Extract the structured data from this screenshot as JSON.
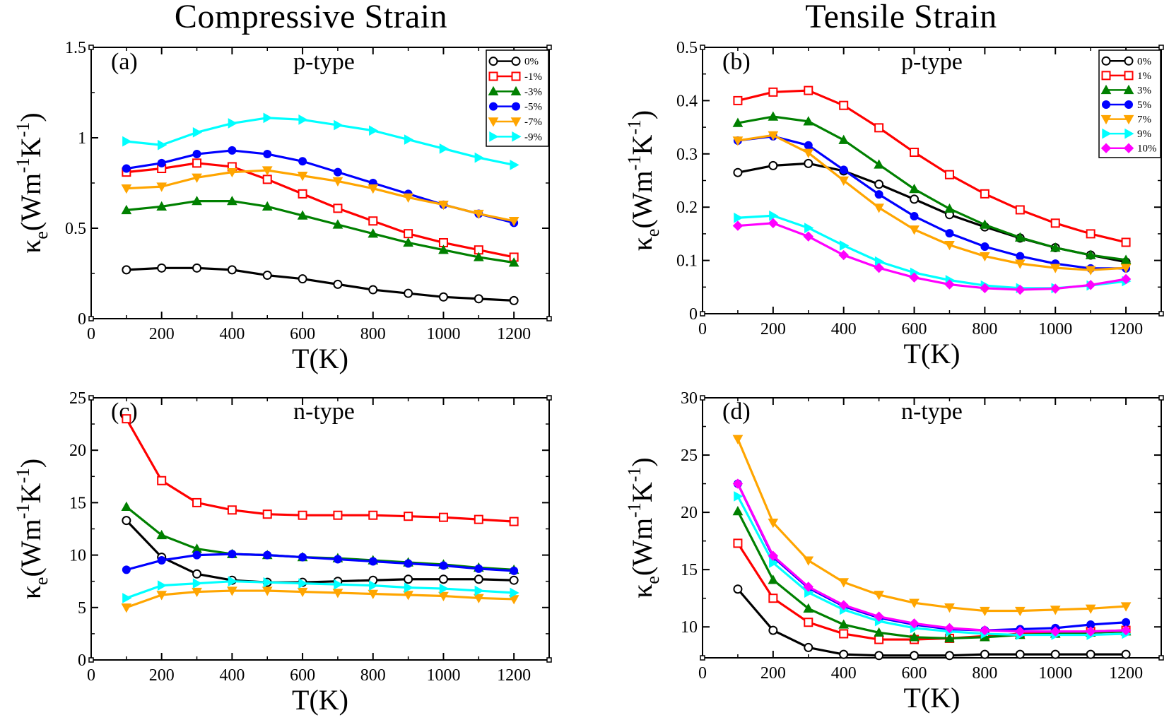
{
  "titles": {
    "left": "Compressive  Strain",
    "right": "Tensile  Strain"
  },
  "chart_data": [
    {
      "type": "line",
      "panel_label": "(a)",
      "annotation": "p-type",
      "xlabel": "T(K)",
      "ylabel": "κe(Wm-1K-1)",
      "xlim": [
        0,
        1300
      ],
      "ylim": [
        0,
        1.5
      ],
      "xticks": [
        0,
        200,
        400,
        600,
        800,
        1000,
        1200
      ],
      "yticks": [
        0,
        0.5,
        1,
        1.5
      ],
      "ytick_labels": [
        "0",
        "0.5",
        "1",
        "1.5"
      ],
      "legend_position": "top-right",
      "x": [
        100,
        200,
        300,
        400,
        500,
        600,
        700,
        800,
        900,
        1000,
        1100,
        1200
      ],
      "series": [
        {
          "name": "0%",
          "color": "#000000",
          "marker": "circle-open",
          "values": [
            0.27,
            0.28,
            0.28,
            0.27,
            0.24,
            0.22,
            0.19,
            0.16,
            0.14,
            0.12,
            0.11,
            0.1
          ]
        },
        {
          "name": "-1%",
          "color": "#ff0000",
          "marker": "square-open",
          "values": [
            0.81,
            0.83,
            0.86,
            0.84,
            0.77,
            0.69,
            0.61,
            0.54,
            0.47,
            0.42,
            0.38,
            0.34
          ]
        },
        {
          "name": "-3%",
          "color": "#008000",
          "marker": "triangle-up",
          "values": [
            0.6,
            0.62,
            0.65,
            0.65,
            0.62,
            0.57,
            0.52,
            0.47,
            0.42,
            0.38,
            0.34,
            0.31
          ]
        },
        {
          "name": "-5%",
          "color": "#0000ff",
          "marker": "circle",
          "values": [
            0.83,
            0.86,
            0.91,
            0.93,
            0.91,
            0.87,
            0.81,
            0.75,
            0.69,
            0.63,
            0.58,
            0.53
          ]
        },
        {
          "name": "-7%",
          "color": "#ffa500",
          "marker": "triangle-down",
          "values": [
            0.72,
            0.73,
            0.78,
            0.81,
            0.82,
            0.79,
            0.76,
            0.72,
            0.67,
            0.63,
            0.58,
            0.54
          ]
        },
        {
          "name": "-9%",
          "color": "#00ffff",
          "marker": "triangle-right",
          "values": [
            0.98,
            0.96,
            1.03,
            1.08,
            1.11,
            1.1,
            1.07,
            1.04,
            0.99,
            0.94,
            0.89,
            0.85
          ]
        }
      ]
    },
    {
      "type": "line",
      "panel_label": "(b)",
      "annotation": "p-type",
      "xlabel": "T(K)",
      "ylabel": "κe(Wm-1K-1)",
      "xlim": [
        0,
        1300
      ],
      "ylim": [
        0,
        0.5
      ],
      "xticks": [
        0,
        200,
        400,
        600,
        800,
        1000,
        1200
      ],
      "yticks": [
        0,
        0.1,
        0.2,
        0.3,
        0.4,
        0.5
      ],
      "ytick_labels": [
        "0",
        "0.1",
        "0.2",
        "0.3",
        "0.4",
        "0.5"
      ],
      "legend_position": "top-right",
      "x": [
        100,
        200,
        300,
        400,
        500,
        600,
        700,
        800,
        900,
        1000,
        1100,
        1200
      ],
      "series": [
        {
          "name": "0%",
          "color": "#000000",
          "marker": "circle-open",
          "values": [
            0.265,
            0.278,
            0.282,
            0.268,
            0.243,
            0.215,
            0.186,
            0.163,
            0.142,
            0.124,
            0.11,
            0.097
          ]
        },
        {
          "name": "1%",
          "color": "#ff0000",
          "marker": "square-open",
          "values": [
            0.4,
            0.416,
            0.419,
            0.391,
            0.349,
            0.303,
            0.261,
            0.225,
            0.195,
            0.17,
            0.15,
            0.134
          ]
        },
        {
          "name": "3%",
          "color": "#008000",
          "marker": "triangle-up",
          "values": [
            0.358,
            0.37,
            0.361,
            0.326,
            0.28,
            0.234,
            0.197,
            0.167,
            0.143,
            0.124,
            0.11,
            0.101
          ]
        },
        {
          "name": "5%",
          "color": "#0000ff",
          "marker": "circle",
          "values": [
            0.325,
            0.333,
            0.316,
            0.27,
            0.224,
            0.183,
            0.151,
            0.126,
            0.108,
            0.094,
            0.085,
            0.085
          ]
        },
        {
          "name": "7%",
          "color": "#ffa500",
          "marker": "triangle-down",
          "values": [
            0.325,
            0.335,
            0.302,
            0.25,
            0.199,
            0.158,
            0.129,
            0.108,
            0.094,
            0.086,
            0.082,
            0.086
          ]
        },
        {
          "name": "9%",
          "color": "#00ffff",
          "marker": "triangle-right",
          "values": [
            0.18,
            0.184,
            0.161,
            0.128,
            0.098,
            0.077,
            0.063,
            0.053,
            0.048,
            0.048,
            0.053,
            0.061
          ]
        },
        {
          "name": "10%",
          "color": "#ff00ff",
          "marker": "diamond",
          "values": [
            0.165,
            0.17,
            0.145,
            0.11,
            0.086,
            0.068,
            0.055,
            0.048,
            0.045,
            0.047,
            0.054,
            0.065
          ]
        }
      ]
    },
    {
      "type": "line",
      "panel_label": "(c)",
      "annotation": "n-type",
      "xlabel": "T(K)",
      "ylabel": "κe(Wm-1K-1)",
      "xlim": [
        0,
        1300
      ],
      "ylim": [
        0,
        25
      ],
      "xticks": [
        0,
        200,
        400,
        600,
        800,
        1000,
        1200
      ],
      "yticks": [
        0,
        5,
        10,
        15,
        20,
        25
      ],
      "ytick_labels": [
        "0",
        "5",
        "10",
        "15",
        "20",
        "25"
      ],
      "x": [
        100,
        200,
        300,
        400,
        500,
        600,
        700,
        800,
        900,
        1000,
        1100,
        1200
      ],
      "series": [
        {
          "color": "#000000",
          "marker": "circle-open",
          "values": [
            13.3,
            9.8,
            8.2,
            7.6,
            7.4,
            7.4,
            7.5,
            7.6,
            7.7,
            7.7,
            7.7,
            7.6
          ]
        },
        {
          "color": "#ff0000",
          "marker": "square-open",
          "values": [
            23.0,
            17.1,
            15.0,
            14.3,
            13.9,
            13.8,
            13.8,
            13.8,
            13.7,
            13.6,
            13.4,
            13.2
          ]
        },
        {
          "color": "#008000",
          "marker": "triangle-up",
          "values": [
            14.6,
            11.9,
            10.6,
            10.1,
            10.0,
            9.8,
            9.7,
            9.5,
            9.3,
            9.1,
            8.8,
            8.6
          ]
        },
        {
          "color": "#0000ff",
          "marker": "circle",
          "values": [
            8.6,
            9.5,
            10.0,
            10.1,
            10.0,
            9.8,
            9.6,
            9.4,
            9.2,
            9.0,
            8.7,
            8.5
          ]
        },
        {
          "color": "#ffa500",
          "marker": "triangle-down",
          "values": [
            5.0,
            6.2,
            6.5,
            6.6,
            6.6,
            6.5,
            6.4,
            6.3,
            6.2,
            6.1,
            5.9,
            5.8
          ]
        },
        {
          "color": "#00ffff",
          "marker": "triangle-right",
          "values": [
            5.9,
            7.1,
            7.3,
            7.5,
            7.4,
            7.3,
            7.2,
            7.1,
            6.9,
            6.8,
            6.6,
            6.4
          ]
        }
      ]
    },
    {
      "type": "line",
      "panel_label": "(d)",
      "annotation": "n-type",
      "xlabel": "T(K)",
      "ylabel": "κe(Wm-1K-1)",
      "xlim": [
        0,
        1300
      ],
      "ylim": [
        7.3,
        30
      ],
      "xticks": [
        0,
        200,
        400,
        600,
        800,
        1000,
        1200
      ],
      "yticks": [
        10,
        15,
        20,
        25,
        30
      ],
      "ytick_labels": [
        "10",
        "15",
        "20",
        "25",
        "30"
      ],
      "x": [
        100,
        200,
        300,
        400,
        500,
        600,
        700,
        800,
        900,
        1000,
        1100,
        1200
      ],
      "series": [
        {
          "color": "#000000",
          "marker": "circle-open",
          "values": [
            13.3,
            9.7,
            8.2,
            7.6,
            7.5,
            7.5,
            7.5,
            7.6,
            7.6,
            7.6,
            7.6,
            7.6
          ]
        },
        {
          "color": "#ff0000",
          "marker": "square-open",
          "values": [
            17.3,
            12.5,
            10.4,
            9.4,
            8.9,
            8.9,
            9.0,
            9.2,
            9.4,
            9.5,
            9.6,
            9.7
          ]
        },
        {
          "color": "#008000",
          "marker": "triangle-up",
          "values": [
            20.1,
            14.1,
            11.6,
            10.2,
            9.5,
            9.1,
            9.0,
            9.1,
            9.3,
            9.4,
            9.5,
            9.6
          ]
        },
        {
          "color": "#0000ff",
          "marker": "circle",
          "values": [
            22.5,
            16.1,
            13.4,
            11.8,
            10.8,
            10.2,
            9.8,
            9.7,
            9.8,
            9.9,
            10.2,
            10.4
          ]
        },
        {
          "color": "#ffa500",
          "marker": "triangle-down",
          "values": [
            26.4,
            19.1,
            15.8,
            13.9,
            12.8,
            12.1,
            11.7,
            11.4,
            11.4,
            11.5,
            11.6,
            11.8
          ]
        },
        {
          "color": "#00ffff",
          "marker": "triangle-right",
          "values": [
            21.4,
            15.6,
            13.0,
            11.5,
            10.5,
            9.9,
            9.6,
            9.4,
            9.3,
            9.3,
            9.3,
            9.4
          ]
        },
        {
          "color": "#ff00ff",
          "marker": "diamond",
          "values": [
            22.5,
            16.2,
            13.5,
            11.9,
            10.9,
            10.3,
            9.9,
            9.7,
            9.6,
            9.6,
            9.6,
            9.7
          ]
        }
      ]
    }
  ]
}
